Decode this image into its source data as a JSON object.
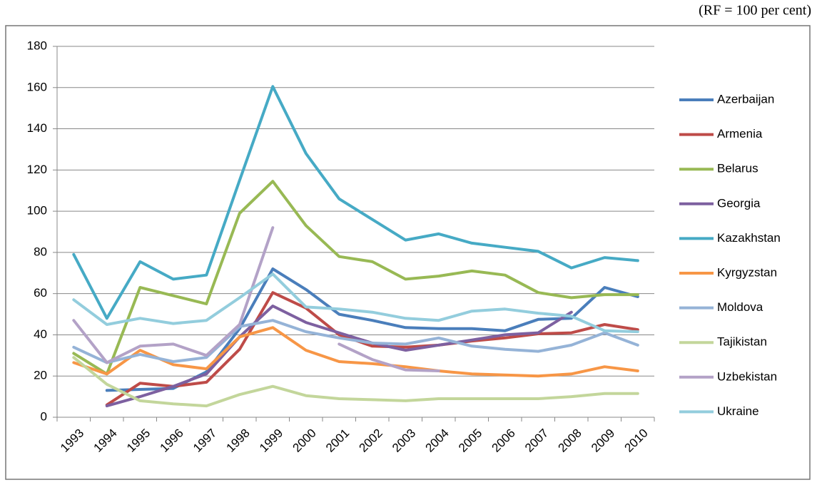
{
  "chart_data": {
    "type": "line",
    "annotation": "(RF = 100 per cent)",
    "categories": [
      "1993",
      "1994",
      "1995",
      "1996",
      "1997",
      "1998",
      "1999",
      "2000",
      "2001",
      "2002",
      "2003",
      "2004",
      "2005",
      "2006",
      "2007",
      "2008",
      "2009",
      "2010"
    ],
    "series": [
      {
        "name": "Azerbaijan",
        "color": "#4a7ebb",
        "values": [
          null,
          13,
          13.5,
          14,
          22,
          43,
          72,
          62,
          50,
          47,
          43.5,
          43,
          43,
          42,
          47.5,
          48,
          63,
          58.5
        ]
      },
      {
        "name": "Armenia",
        "color": "#be4b48",
        "values": [
          null,
          6,
          16.5,
          15,
          17,
          33,
          60.5,
          53,
          40,
          34.5,
          34,
          35,
          37,
          38.5,
          40.5,
          41,
          45,
          42.5
        ]
      },
      {
        "name": "Belarus",
        "color": "#98b954",
        "values": [
          31,
          21,
          63,
          59,
          55,
          99,
          114.5,
          93,
          78,
          75.5,
          67,
          68.5,
          71,
          69,
          60.5,
          58,
          59.5,
          59.5
        ]
      },
      {
        "name": "Georgia",
        "color": "#7d60a0",
        "values": [
          null,
          5.5,
          10,
          15,
          21,
          39,
          54,
          46,
          41,
          36,
          32.5,
          35,
          37.5,
          40,
          41,
          51,
          null,
          null
        ]
      },
      {
        "name": "Kazakhstan",
        "color": "#46aac5",
        "values": [
          79,
          48,
          75.5,
          67,
          69,
          115,
          160.5,
          128,
          106,
          96,
          86,
          89,
          84.5,
          82.5,
          80.5,
          72.5,
          77.5,
          76
        ]
      },
      {
        "name": "Kyrgyzstan",
        "color": "#f79646",
        "values": [
          26.5,
          21,
          32.5,
          25.5,
          23.5,
          39,
          43.5,
          32.5,
          27,
          26,
          24.5,
          22.5,
          21,
          20.5,
          20,
          21,
          24.5,
          22.5
        ]
      },
      {
        "name": "Moldova",
        "color": "#95b3d7",
        "values": [
          34,
          26.5,
          30.5,
          27,
          29,
          44,
          47,
          41.5,
          38.5,
          36,
          35.5,
          38.5,
          34.5,
          33,
          32,
          35,
          41,
          35
        ]
      },
      {
        "name": "Tajikistan",
        "color": "#c3d69b",
        "values": [
          29,
          16,
          8,
          6.5,
          5.5,
          11,
          15,
          10.5,
          9,
          8.5,
          8,
          9,
          9,
          9,
          9,
          10,
          11.5,
          11.5
        ]
      },
      {
        "name": "Uzbekistan",
        "color": "#b3a2c7",
        "values": [
          47,
          26.5,
          34.5,
          35.5,
          30,
          45,
          92,
          null,
          35.5,
          28,
          23,
          22.5,
          null,
          null,
          null,
          null,
          null,
          null
        ]
      },
      {
        "name": "Ukraine",
        "color": "#93cddd",
        "values": [
          57,
          45,
          48,
          45.5,
          47,
          58,
          69.5,
          53.5,
          52.5,
          51,
          48,
          47,
          51.5,
          52.5,
          50.5,
          49,
          42,
          41.5
        ]
      }
    ],
    "ylim": [
      0,
      180
    ],
    "yticks": [
      0,
      20,
      40,
      60,
      80,
      100,
      120,
      140,
      160,
      180
    ],
    "grid": true
  }
}
